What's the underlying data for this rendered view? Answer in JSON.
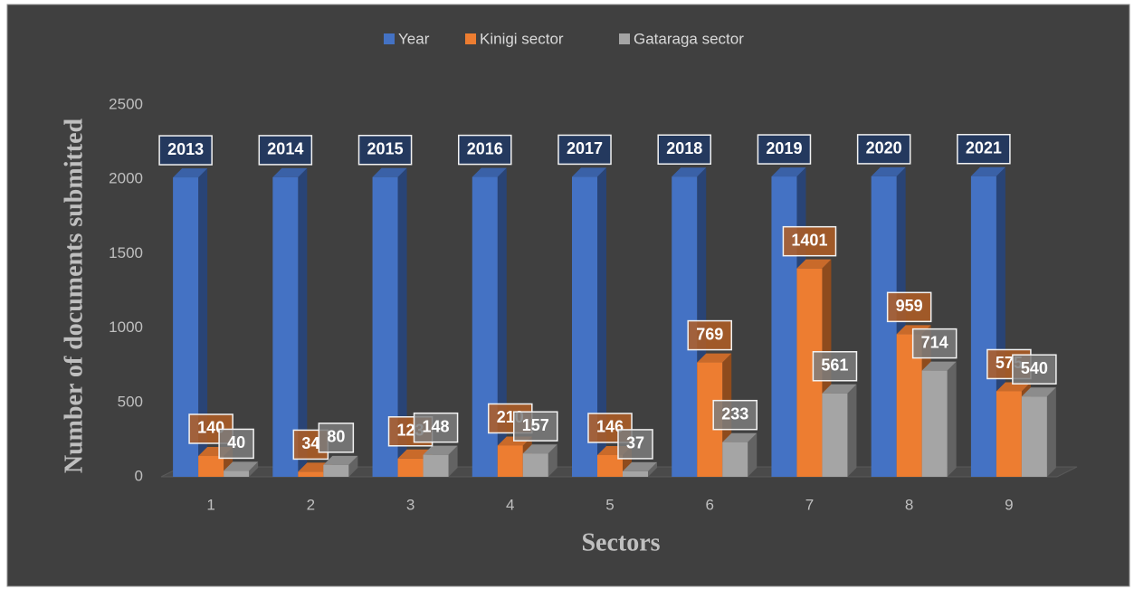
{
  "chart_data": {
    "type": "bar3d",
    "categories": [
      "1",
      "2",
      "3",
      "4",
      "5",
      "6",
      "7",
      "8",
      "9"
    ],
    "series": [
      {
        "name": "Year",
        "color": "#4472c4",
        "values": [
          2013,
          2014,
          2015,
          2016,
          2017,
          2018,
          2019,
          2020,
          2021
        ]
      },
      {
        "name": "Kinigi sector",
        "color": "#ed7d31",
        "values": [
          140,
          34,
          123,
          210,
          146,
          769,
          1401,
          959,
          575
        ]
      },
      {
        "name": "Gataraga sector",
        "color": "#a5a5a5",
        "values": [
          40,
          80,
          148,
          157,
          37,
          233,
          561,
          714,
          540
        ]
      }
    ],
    "ylim": [
      0,
      2500
    ],
    "yticks": [
      0,
      500,
      1000,
      1500,
      2000,
      2500
    ],
    "xlabel": "Sectors",
    "ylabel": "Number of documents submitted",
    "legend": "top",
    "grid": false
  }
}
